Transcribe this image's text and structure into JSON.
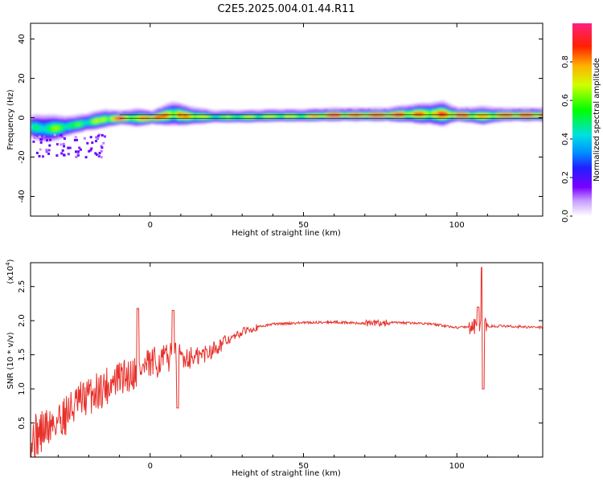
{
  "title": "C2E5.2025.004.01.44.R11",
  "chart_data": [
    {
      "type": "heatmap",
      "name": "spectrogram",
      "xlabel": "Height of straight line (km)",
      "ylabel": "Frequency (Hz)",
      "xlim": [
        -39,
        128
      ],
      "ylim": [
        -50,
        48
      ],
      "xticks": [
        0,
        50,
        100
      ],
      "yticks": [
        -40,
        -20,
        0,
        20,
        40
      ],
      "band": [
        {
          "x": -39,
          "f": -4.5,
          "w": 4,
          "a": 0.45
        },
        {
          "x": -35,
          "f": -5.5,
          "w": 5,
          "a": 0.55
        },
        {
          "x": -30,
          "f": -5,
          "w": 4,
          "a": 0.6
        },
        {
          "x": -25,
          "f": -3.5,
          "w": 3,
          "a": 0.55
        },
        {
          "x": -20,
          "f": -2,
          "w": 3,
          "a": 0.6
        },
        {
          "x": -15,
          "f": -0.5,
          "w": 3,
          "a": 0.7
        },
        {
          "x": -10,
          "f": 0,
          "w": 2,
          "a": 0.9
        },
        {
          "x": -5,
          "f": 0,
          "w": 3,
          "a": 0.7
        },
        {
          "x": 0,
          "f": 0,
          "w": 2,
          "a": 0.95
        },
        {
          "x": 7,
          "f": 2,
          "w": 4,
          "a": 0.8
        },
        {
          "x": 12,
          "f": 1,
          "w": 3,
          "a": 0.85
        },
        {
          "x": 20,
          "f": 0.5,
          "w": 2,
          "a": 0.6
        },
        {
          "x": 30,
          "f": 0.5,
          "w": 2,
          "a": 0.65
        },
        {
          "x": 40,
          "f": 1,
          "w": 2,
          "a": 0.7
        },
        {
          "x": 50,
          "f": 1,
          "w": 2,
          "a": 0.72
        },
        {
          "x": 60,
          "f": 1.5,
          "w": 2,
          "a": 0.95
        },
        {
          "x": 68,
          "f": 1.5,
          "w": 2,
          "a": 0.9
        },
        {
          "x": 76,
          "f": 1.5,
          "w": 2,
          "a": 0.95
        },
        {
          "x": 85,
          "f": 2,
          "w": 3,
          "a": 0.8
        },
        {
          "x": 95,
          "f": 2,
          "w": 4,
          "a": 0.85
        },
        {
          "x": 100,
          "f": 1.5,
          "w": 2,
          "a": 0.95
        },
        {
          "x": 108,
          "f": 1,
          "w": 3,
          "a": 0.7
        },
        {
          "x": 115,
          "f": 1.5,
          "w": 2,
          "a": 0.9
        },
        {
          "x": 128,
          "f": 1.5,
          "w": 2,
          "a": 0.95
        }
      ]
    },
    {
      "type": "line",
      "name": "snr",
      "xlabel": "Height of straight line (km)",
      "ylabel": "SNR (10 * v/v)",
      "yscale_label": "(x10^4)",
      "xlim": [
        -39,
        128
      ],
      "ylim": [
        0,
        2.85
      ],
      "xticks": [
        0,
        50,
        100
      ],
      "yticks": [
        0.5,
        1.0,
        1.5,
        2.0,
        2.5
      ],
      "ytick_labels": [
        "0.5",
        "1.0",
        "1.5",
        "2.0",
        "2.5"
      ],
      "color": "#e8302a",
      "trend": [
        {
          "x": -39,
          "y": 0.25
        },
        {
          "x": -30,
          "y": 0.55
        },
        {
          "x": -20,
          "y": 0.9
        },
        {
          "x": -10,
          "y": 1.15
        },
        {
          "x": 0,
          "y": 1.35
        },
        {
          "x": 8,
          "y": 1.5
        },
        {
          "x": 15,
          "y": 1.45
        },
        {
          "x": 25,
          "y": 1.7
        },
        {
          "x": 32,
          "y": 1.88
        },
        {
          "x": 40,
          "y": 1.95
        },
        {
          "x": 50,
          "y": 1.97
        },
        {
          "x": 60,
          "y": 1.98
        },
        {
          "x": 70,
          "y": 1.96
        },
        {
          "x": 80,
          "y": 1.97
        },
        {
          "x": 90,
          "y": 1.96
        },
        {
          "x": 100,
          "y": 1.9
        },
        {
          "x": 107,
          "y": 1.92
        },
        {
          "x": 115,
          "y": 1.92
        },
        {
          "x": 128,
          "y": 1.9
        }
      ],
      "spikes": [
        {
          "x": -4,
          "y": 2.18
        },
        {
          "x": 7.5,
          "y": 2.15
        },
        {
          "x": 9,
          "y": 0.72
        },
        {
          "x": 107,
          "y": 2.2
        },
        {
          "x": 108.3,
          "y": 2.78
        },
        {
          "x": 108.6,
          "y": 1.0
        }
      ]
    }
  ],
  "colorbar": {
    "label": "Normalized spectral amplitude",
    "ticks": [
      "0.0",
      "0.2",
      "0.4",
      "0.6",
      "0.8"
    ],
    "tick_values": [
      0.0,
      0.2,
      0.4,
      0.6,
      0.8
    ],
    "range": [
      0,
      1
    ]
  }
}
